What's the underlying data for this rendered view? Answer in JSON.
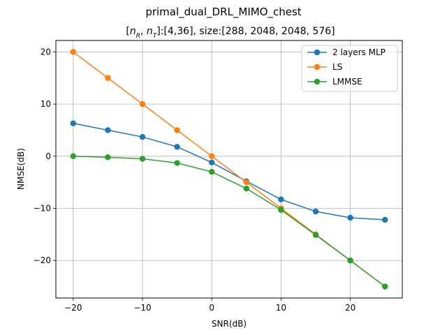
{
  "chart_data": {
    "type": "line",
    "title": "primal_dual_DRL_MIMO_chest",
    "subtitle": "[n_R, n_T]:[4,36], size:[288, 2048, 2048, 576]",
    "xlabel": "SNR(dB)",
    "ylabel": "NMSE(dB)",
    "xlim": [
      -22.5,
      27.5
    ],
    "ylim": [
      -27.2,
      22.2
    ],
    "xticks": [
      -20,
      -10,
      0,
      10,
      20
    ],
    "yticks": [
      -20,
      -10,
      0,
      10,
      20
    ],
    "xtick_labels": [
      "−20",
      "−10",
      "0",
      "10",
      "20"
    ],
    "ytick_labels": [
      "−20",
      "−10",
      "0",
      "10",
      "20"
    ],
    "grid": true,
    "legend_position": "top-right",
    "x": [
      -20,
      -15,
      -10,
      -5,
      0,
      5,
      10,
      15,
      20,
      25
    ],
    "series": [
      {
        "name": "2 layers MLP",
        "color": "#1f77b4",
        "values": [
          6.3,
          5.0,
          3.7,
          1.8,
          -1.2,
          -4.8,
          -8.3,
          -10.6,
          -11.8,
          -12.2
        ]
      },
      {
        "name": "LS",
        "color": "#ff7f0e",
        "values": [
          20.0,
          15.0,
          10.0,
          5.0,
          0.0,
          -5.0,
          -10.0,
          -15.0,
          -20.0,
          -25.0
        ]
      },
      {
        "name": "LMMSE",
        "color": "#2ca02c",
        "values": [
          0.0,
          -0.2,
          -0.5,
          -1.3,
          -3.0,
          -6.2,
          -10.3,
          -15.1,
          -20.0,
          -25.0
        ]
      }
    ]
  }
}
